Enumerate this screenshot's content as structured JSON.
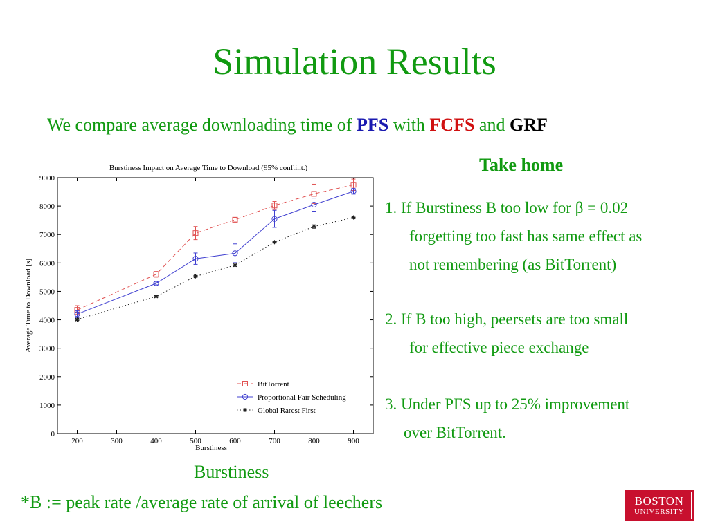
{
  "slide": {
    "title": "Simulation Results",
    "subtitle": {
      "prefix": "We compare average downloading time of ",
      "pfs": "PFS",
      "with": " with ",
      "fcfs": "FCFS",
      "and": " and ",
      "grf": "GRF"
    },
    "take_home": {
      "heading": "Take home",
      "points": [
        {
          "lines": [
            "1.  If Burstiness B too low for β = 0.02",
            "forgetting too fast has same effect as",
            "not remembering (as BitTorrent)"
          ]
        },
        {
          "lines": [
            "2.  If  B too high, peersets are too small",
            "for effective piece exchange"
          ]
        },
        {
          "lines": [
            "3. Under PFS up to 25%  improvement",
            "over BitTorrent."
          ]
        }
      ]
    },
    "x_caption": "Burstiness",
    "footnote": "*B := peak rate /average rate of arrival of leechers",
    "logo": {
      "line1": "BOSTON",
      "line2": "UNIVERSITY"
    }
  },
  "chart_data": {
    "type": "line",
    "title": "Burstiness Impact on Average Time to Download (95% conf.int.)",
    "xlabel": "Burstiness",
    "ylabel": "Average Time to Download [s]",
    "xlim": [
      150,
      950
    ],
    "ylim": [
      0,
      9000
    ],
    "xticks": [
      200,
      300,
      400,
      500,
      600,
      700,
      800,
      900
    ],
    "yticks": [
      0,
      1000,
      2000,
      3000,
      4000,
      5000,
      6000,
      7000,
      8000,
      9000
    ],
    "legend_position": "bottom-right",
    "grid": false,
    "series": [
      {
        "name": "BitTorrent",
        "color": "#e05050",
        "dash": "dashed",
        "marker": "square",
        "x": [
          200,
          400,
          500,
          600,
          700,
          800,
          900
        ],
        "y": [
          4350,
          5600,
          7050,
          7520,
          8020,
          8430,
          8750
        ],
        "err": [
          150,
          100,
          230,
          80,
          140,
          340,
          200
        ]
      },
      {
        "name": "Proportional Fair Scheduling",
        "color": "#4040d0",
        "dash": "solid",
        "marker": "circle",
        "x": [
          200,
          400,
          500,
          600,
          700,
          800,
          900
        ],
        "y": [
          4200,
          5280,
          6150,
          6340,
          7550,
          8050,
          8520
        ],
        "err": [
          120,
          50,
          200,
          330,
          300,
          230,
          100
        ]
      },
      {
        "name": "Global Rarest First",
        "color": "#202020",
        "dash": "dotted",
        "marker": "star",
        "x": [
          200,
          400,
          500,
          600,
          700,
          800,
          900
        ],
        "y": [
          4010,
          4820,
          5530,
          5920,
          6730,
          7280,
          7600
        ],
        "err": [
          30,
          30,
          30,
          40,
          30,
          60,
          40
        ]
      }
    ]
  }
}
